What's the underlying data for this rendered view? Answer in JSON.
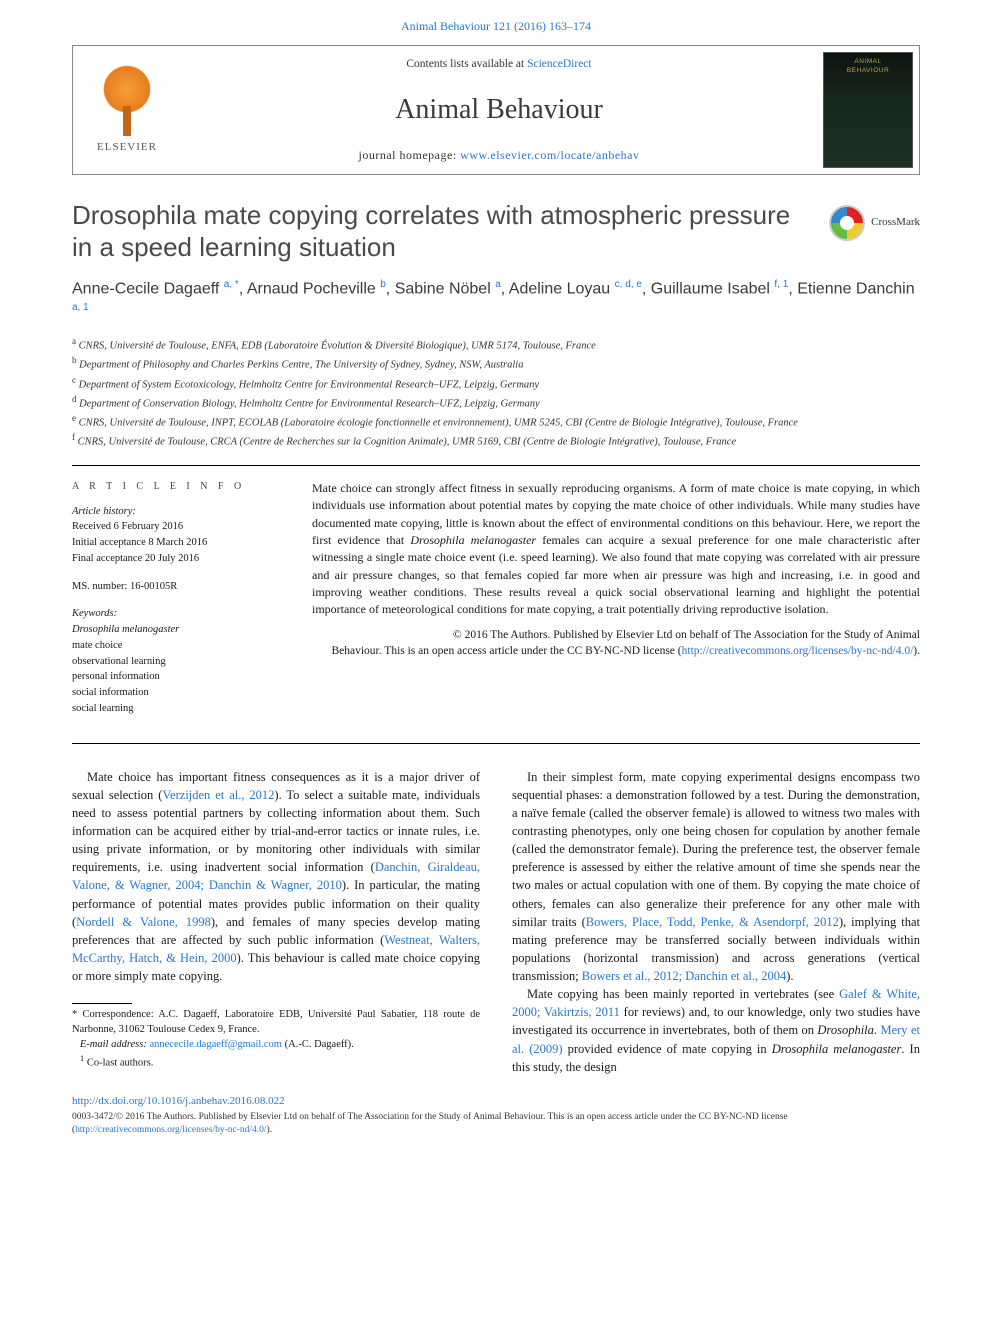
{
  "top_citation": "Animal Behaviour 121 (2016) 163–174",
  "masthead": {
    "contents": "Contents lists available at ",
    "contents_link": "ScienceDirect",
    "journal": "Animal Behaviour",
    "homepage_label": "journal homepage: ",
    "homepage_url": "www.elsevier.com/locate/anbehav",
    "publisher": "ELSEVIER"
  },
  "crossmark_label": "CrossMark",
  "title": "Drosophila mate copying correlates with atmospheric pressure in a speed learning situation",
  "authors_html": "Anne-Cecile Dagaeff <sup><a>a, *</a></sup>, Arnaud Pocheville <sup><a>b</a></sup>, Sabine Nöbel <sup><a>a</a></sup>, Adeline Loyau <sup><a>c, d, e</a></sup>, Guillaume Isabel <sup><a>f, 1</a></sup>, Etienne Danchin <sup><a>a, 1</a></sup>",
  "affiliations": [
    "a CNRS, Université de Toulouse, ENFA, EDB (Laboratoire Évolution & Diversité Biologique), UMR 5174, Toulouse, France",
    "b Department of Philosophy and Charles Perkins Centre, The University of Sydney, Sydney, NSW, Australia",
    "c Department of System Ecotoxicology, Helmholtz Centre for Environmental Research–UFZ, Leipzig, Germany",
    "d Department of Conservation Biology, Helmholtz Centre for Environmental Research–UFZ, Leipzig, Germany",
    "e CNRS, Université de Toulouse, INPT, ECOLAB (Laboratoire écologie fonctionnelle et environnement), UMR 5245, CBI (Centre de Biologie Intégrative), Toulouse, France",
    "f CNRS, Université de Toulouse, CRCA (Centre de Recherches sur la Cognition Animale), UMR 5169, CBI (Centre de Biologie Intégrative), Toulouse, France"
  ],
  "article_info": {
    "heading": "A R T I C L E   I N F O",
    "history_label": "Article history:",
    "history": [
      "Received 6 February 2016",
      "Initial acceptance 8 March 2016",
      "Final acceptance 20 July 2016"
    ],
    "ms": "MS. number: 16-00105R",
    "keywords_label": "Keywords:",
    "keywords": [
      "Drosophila melanogaster",
      "mate choice",
      "observational learning",
      "personal information",
      "social information",
      "social learning"
    ]
  },
  "abstract": "Mate choice can strongly affect fitness in sexually reproducing organisms. A form of mate choice is mate copying, in which individuals use information about potential mates by copying the mate choice of other individuals. While many studies have documented mate copying, little is known about the effect of environmental conditions on this behaviour. Here, we report the first evidence that Drosophila melanogaster females can acquire a sexual preference for one male characteristic after witnessing a single mate choice event (i.e. speed learning). We also found that mate copying was correlated with air pressure and air pressure changes, so that females copied far more when air pressure was high and increasing, i.e. in good and improving weather conditions. These results reveal a quick social observational learning and highlight the potential importance of meteorological conditions for mate copying, a trait potentially driving reproductive isolation.",
  "copyright": {
    "line1": "© 2016 The Authors. Published by Elsevier Ltd on behalf of The Association for the Study of Animal",
    "line2": "Behaviour. This is an open access article under the CC BY-NC-ND license (",
    "url": "http://creativecommons.org/licenses/by-nc-nd/4.0/",
    "close": ")."
  },
  "body": {
    "p1": "Mate choice has important fitness consequences as it is a major driver of sexual selection (Verzijden et al., 2012). To select a suitable mate, individuals need to assess potential partners by collecting information about them. Such information can be acquired either by trial-and-error tactics or innate rules, i.e. using private information, or by monitoring other individuals with similar requirements, i.e. using inadvertent social information (Danchin, Giraldeau, Valone, & Wagner, 2004; Danchin & Wagner, 2010). In particular, the mating performance of potential mates provides public information on their quality (Nordell & Valone, 1998), and females of many species develop mating preferences that are affected by such public information (Westneat, Walters, McCarthy, Hatch, & Hein, 2000). This behaviour is called mate choice copying or more simply mate copying.",
    "p2": "In their simplest form, mate copying experimental designs encompass two sequential phases: a demonstration followed by a test. During the demonstration, a naïve female (called the observer female) is allowed to witness two males with contrasting phenotypes, only one being chosen for copulation by another female (called the demonstrator female). During the preference test, the observer female preference is assessed by either the relative amount of time she spends near the two males or actual copulation with one of them. By copying the mate choice of others, females can also generalize their preference for any other male with similar traits (Bowers, Place, Todd, Penke, & Asendorpf, 2012), implying that mating preference may be transferred socially between individuals within populations (horizontal transmission) and across generations (vertical transmission; Bowers et al., 2012; Danchin et al., 2004).",
    "p3": "Mate copying has been mainly reported in vertebrates (see Galef & White, 2000; Vakirtzis, 2011 for reviews) and, to our knowledge, only two studies have investigated its occurrence in invertebrates, both of them on Drosophila. Mery et al. (2009) provided evidence of mate copying in Drosophila melanogaster. In this study, the design"
  },
  "footnotes": {
    "corr": "* Correspondence: A.C. Dagaeff, Laboratoire EDB, Université Paul Sabatier, 118 route de Narbonne, 31062 Toulouse Cedex 9, France.",
    "email_label": "E-mail address: ",
    "email": "annececile.dagaeff@gmail.com",
    "email_tail": " (A.-C. Dagaeff).",
    "colast": "1 Co-last authors."
  },
  "doi": "http://dx.doi.org/10.1016/j.anbehav.2016.08.022",
  "footer": {
    "text": "0003-3472/© 2016 The Authors. Published by Elsevier Ltd on behalf of The Association for the Study of Animal Behaviour. This is an open access article under the CC BY-NC-ND license (",
    "url": "http://creativecommons.org/licenses/by-nc-nd/4.0/",
    "close": ")."
  },
  "colors": {
    "link": "#2878c8",
    "text": "#1a1a1a",
    "title_grey": "#4a4a4a"
  }
}
